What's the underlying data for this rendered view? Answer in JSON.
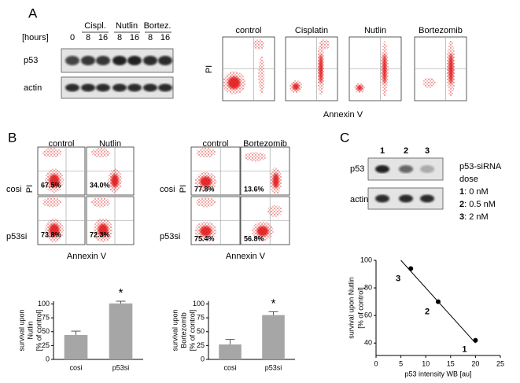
{
  "panels": {
    "a": {
      "label": "A",
      "blot": {
        "hours_label": "[hours]",
        "groups": [
          "Cispl.",
          "Nutlin",
          "Bortez."
        ],
        "hours": [
          "0",
          "8",
          "16",
          "8",
          "16",
          "8",
          "16"
        ],
        "rows": [
          "p53",
          "actin"
        ]
      },
      "flow": {
        "conditions": [
          "control",
          "Cisplatin",
          "Nutlin",
          "Bortezomib"
        ],
        "y_label": "PI",
        "x_label": "Annexin V"
      }
    },
    "b": {
      "label": "B",
      "flow": [
        {
          "conditions": [
            "control",
            "Nutlin"
          ],
          "rows": [
            "cosi",
            "p53si"
          ],
          "percentages": [
            [
              "67.5%",
              "34.0%"
            ],
            [
              "73.8%",
              "72.3%"
            ]
          ],
          "y_label": "PI",
          "x_label": "Annexin V"
        },
        {
          "conditions": [
            "control",
            "Bortezomib"
          ],
          "rows": [
            "cosi",
            "p53si"
          ],
          "percentages": [
            [
              "77.8%",
              "13.6%"
            ],
            [
              "75.4%",
              "56.8%"
            ]
          ],
          "y_label": "PI",
          "x_label": "Annexin V"
        }
      ]
    },
    "c": {
      "label": "C",
      "blot": {
        "lanes": [
          "1",
          "2",
          "3"
        ],
        "rows": [
          "p53",
          "actin"
        ]
      },
      "legend": {
        "title": [
          "p53-siRNA",
          "dose"
        ],
        "items": [
          {
            "key": "1",
            "text": ": 0 nM"
          },
          {
            "key": "2",
            "text": ": 0.5 nM"
          },
          {
            "key": "3",
            "text": ": 2 nM"
          }
        ]
      }
    }
  },
  "chart_data": [
    {
      "type": "bar",
      "y_label": [
        "survival upon",
        "Nutlin",
        "[% of control]"
      ],
      "categories": [
        "cosi",
        "p53si"
      ],
      "values": [
        44,
        101
      ],
      "errors": [
        7,
        4
      ],
      "color": "#a6a6a6",
      "ylim": [
        0,
        105
      ],
      "yticks": [
        0,
        25,
        50,
        75,
        100
      ],
      "annotation": "*"
    },
    {
      "type": "bar",
      "y_label": [
        "survival upon",
        "Bortezomib",
        "[% of control]"
      ],
      "categories": [
        "cosi",
        "p53si"
      ],
      "values": [
        27,
        80
      ],
      "errors": [
        9,
        6
      ],
      "color": "#a6a6a6",
      "ylim": [
        0,
        105
      ],
      "yticks": [
        0,
        25,
        50,
        75,
        100
      ],
      "annotation": "*"
    },
    {
      "type": "scatter",
      "y_label": [
        "survival upon Nutlin",
        "[% of control]"
      ],
      "x_label": "p53 intensity WB [au]",
      "x": [
        7,
        12.5,
        20
      ],
      "y": [
        94,
        70,
        42
      ],
      "point_labels": [
        "3",
        "2",
        "1"
      ],
      "color": "#000000",
      "fit_line": {
        "x": [
          5,
          20
        ],
        "y": [
          100,
          40
        ]
      },
      "xlim": [
        0,
        25
      ],
      "ylim": [
        31,
        100
      ],
      "xticks": [
        0,
        5,
        10,
        15,
        20,
        25
      ],
      "yticks": [
        40,
        60,
        80,
        100
      ]
    }
  ]
}
